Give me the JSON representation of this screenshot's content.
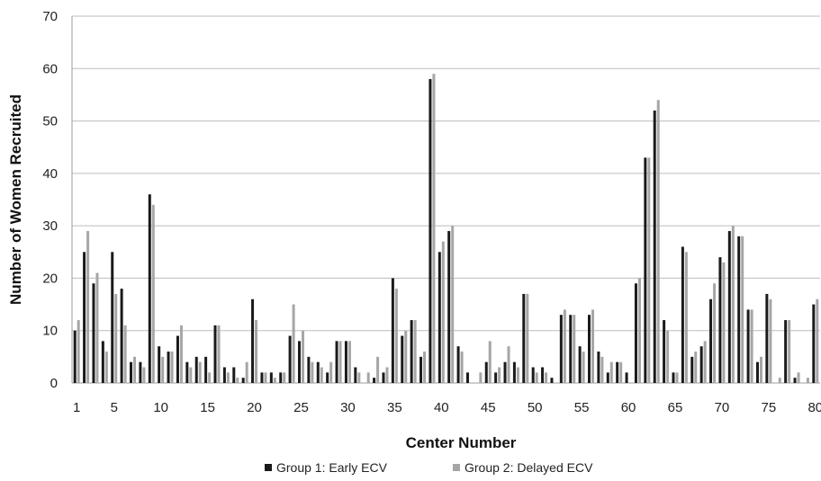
{
  "chart_data": {
    "type": "bar",
    "xlabel": "Center Number",
    "ylabel": "Number of Women Recruited",
    "ylim": [
      0,
      70
    ],
    "yticks": [
      0,
      10,
      20,
      30,
      40,
      50,
      60,
      70
    ],
    "xtick_labels": [
      "1",
      "5",
      "10",
      "15",
      "20",
      "25",
      "30",
      "35",
      "40",
      "45",
      "50",
      "55",
      "60",
      "65",
      "70",
      "75",
      "80"
    ],
    "xtick_centers": [
      1,
      5,
      10,
      15,
      20,
      25,
      30,
      35,
      40,
      45,
      50,
      55,
      60,
      65,
      70,
      75,
      80
    ],
    "grid": true,
    "legend_position": "bottom",
    "categories": [
      1,
      2,
      3,
      4,
      5,
      6,
      7,
      8,
      9,
      10,
      11,
      12,
      13,
      14,
      15,
      16,
      17,
      18,
      19,
      20,
      21,
      22,
      23,
      24,
      25,
      26,
      27,
      28,
      29,
      30,
      31,
      32,
      33,
      34,
      35,
      36,
      37,
      38,
      39,
      40,
      41,
      42,
      43,
      44,
      45,
      46,
      47,
      48,
      49,
      50,
      51,
      52,
      53,
      54,
      55,
      56,
      57,
      58,
      59,
      60,
      61,
      62,
      63,
      64,
      65,
      66,
      67,
      68,
      69,
      70,
      71,
      72,
      73,
      74,
      75,
      76,
      77,
      78,
      79,
      80
    ],
    "series": [
      {
        "name": "Group 1:  Early ECV",
        "color": "#1a1a1a",
        "values": [
          10,
          25,
          19,
          8,
          25,
          18,
          4,
          4,
          36,
          7,
          6,
          9,
          4,
          5,
          5,
          11,
          3,
          3,
          1,
          16,
          2,
          2,
          2,
          9,
          8,
          5,
          4,
          2,
          8,
          8,
          3,
          0,
          1,
          2,
          20,
          9,
          12,
          5,
          58,
          25,
          29,
          7,
          2,
          0,
          4,
          2,
          4,
          4,
          17,
          3,
          3,
          1,
          13,
          13,
          7,
          13,
          6,
          2,
          4,
          2,
          19,
          43,
          52,
          12,
          2,
          26,
          5,
          7,
          16,
          24,
          29,
          28,
          14,
          4,
          17,
          0,
          12,
          1,
          0,
          15
        ]
      },
      {
        "name": "Group 2:  Delayed ECV",
        "color": "#a6a6a6",
        "values": [
          12,
          29,
          21,
          6,
          17,
          11,
          5,
          3,
          34,
          5,
          6,
          11,
          3,
          4,
          2,
          11,
          2,
          1,
          4,
          12,
          2,
          1,
          2,
          15,
          10,
          4,
          3,
          4,
          8,
          8,
          2,
          2,
          5,
          3,
          18,
          10,
          12,
          6,
          59,
          27,
          30,
          6,
          0,
          2,
          8,
          3,
          7,
          3,
          17,
          2,
          2,
          0,
          14,
          13,
          6,
          14,
          5,
          4,
          4,
          0,
          20,
          43,
          54,
          10,
          2,
          25,
          6,
          8,
          19,
          23,
          30,
          28,
          14,
          5,
          16,
          1,
          12,
          2,
          1,
          16
        ]
      }
    ]
  }
}
